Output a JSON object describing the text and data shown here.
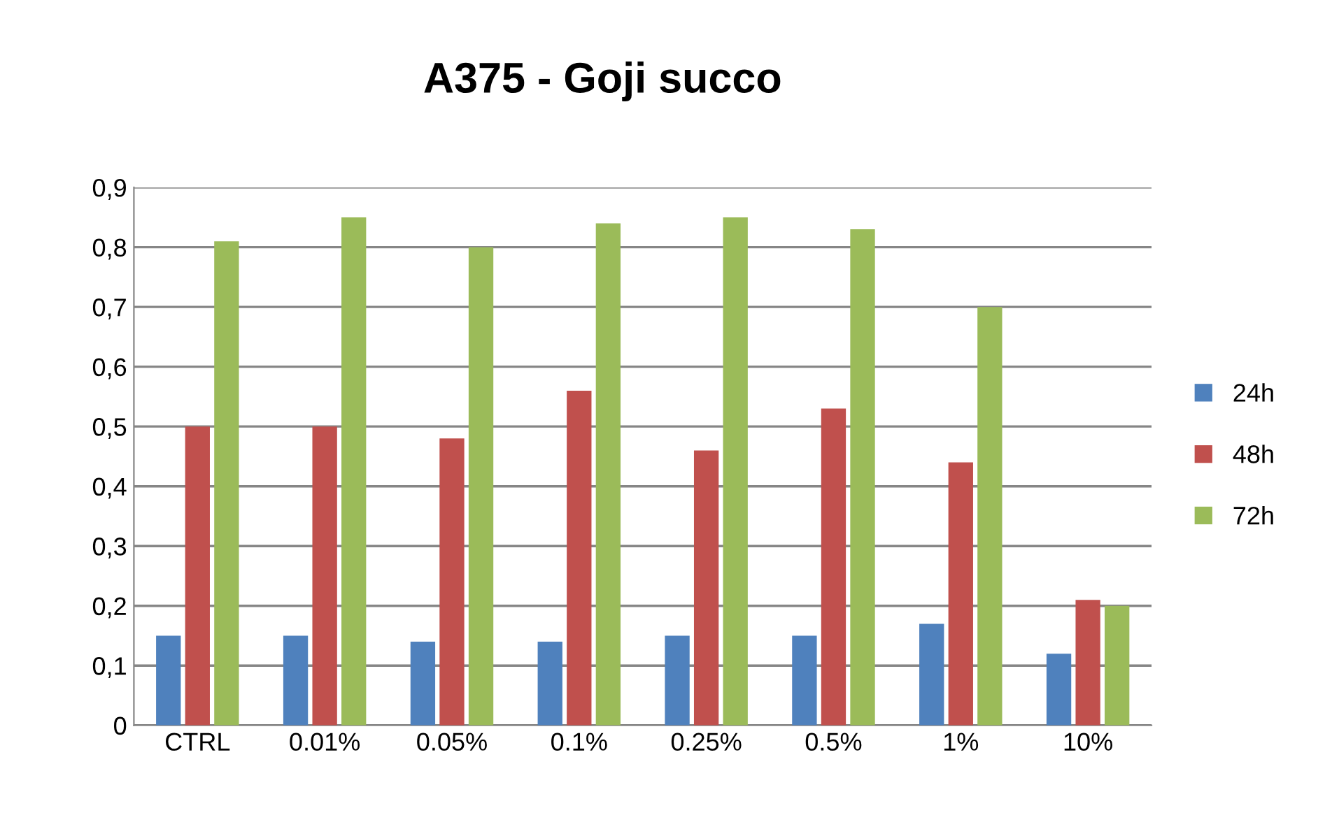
{
  "chart_data": {
    "type": "bar",
    "title": "A375 - Goji succo",
    "categories": [
      "CTRL",
      "0.01%",
      "0.05%",
      "0.1%",
      "0.25%",
      "0.5%",
      "1%",
      "10%"
    ],
    "series": [
      {
        "name": "24h",
        "color": "#4f81bd",
        "values": [
          0.15,
          0.15,
          0.14,
          0.14,
          0.15,
          0.15,
          0.17,
          0.12
        ]
      },
      {
        "name": "48h",
        "color": "#c0504d",
        "values": [
          0.5,
          0.5,
          0.48,
          0.56,
          0.46,
          0.53,
          0.44,
          0.21
        ]
      },
      {
        "name": "72h",
        "color": "#9bbb59",
        "values": [
          0.81,
          0.85,
          0.8,
          0.84,
          0.85,
          0.83,
          0.7,
          0.2
        ]
      }
    ],
    "ylim": [
      0,
      0.9
    ],
    "yticks": [
      {
        "value": 0,
        "label": "0"
      },
      {
        "value": 0.1,
        "label": "0,1"
      },
      {
        "value": 0.2,
        "label": "0,2"
      },
      {
        "value": 0.3,
        "label": "0,3"
      },
      {
        "value": 0.4,
        "label": "0,4"
      },
      {
        "value": 0.5,
        "label": "0,5"
      },
      {
        "value": 0.6,
        "label": "0,6"
      },
      {
        "value": 0.7,
        "label": "0,7"
      },
      {
        "value": 0.8,
        "label": "0,8"
      },
      {
        "value": 0.9,
        "label": "0,9"
      }
    ],
    "grid": "y",
    "legend": "right"
  }
}
